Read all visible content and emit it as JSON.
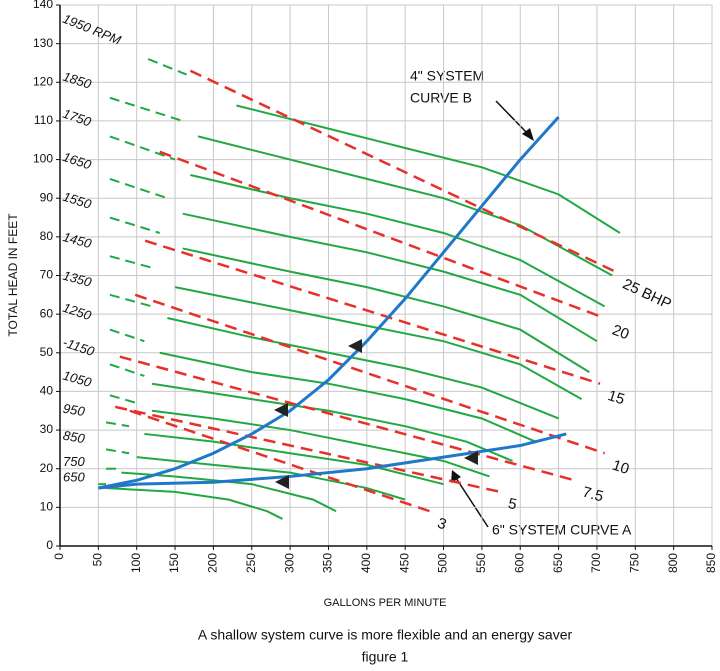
{
  "chart_data": {
    "type": "line",
    "xlabel": "GALLONS PER MINUTE",
    "ylabel": "TOTAL HEAD IN FEET",
    "caption": [
      "A shallow system curve is more flexible and an energy saver",
      "figure 1"
    ],
    "xlim": [
      0,
      850
    ],
    "xticks": [
      0,
      50,
      100,
      150,
      200,
      250,
      300,
      350,
      400,
      450,
      500,
      550,
      600,
      650,
      700,
      750,
      800,
      850
    ],
    "ylim": [
      0,
      140
    ],
    "yticks": [
      0,
      10,
      20,
      30,
      40,
      50,
      60,
      70,
      80,
      90,
      100,
      110,
      120,
      130,
      140
    ],
    "grid": true,
    "rpm_curves": [
      {
        "name": "1950 RPM",
        "color": "#22a843",
        "dash_x": [
          115,
          165
        ],
        "dash_values": [
          126,
          122
        ],
        "x": [
          230,
          350,
          450,
          550,
          650,
          730
        ],
        "values": [
          114,
          108,
          103,
          98,
          91,
          81
        ]
      },
      {
        "name": "1850",
        "color": "#22a843",
        "dash_x": [
          65,
          160
        ],
        "dash_values": [
          116,
          110
        ],
        "x": [
          180,
          300,
          400,
          500,
          600,
          720
        ],
        "values": [
          106,
          100,
          95,
          90,
          83,
          70
        ]
      },
      {
        "name": "1750",
        "color": "#22a843",
        "dash_x": [
          65,
          150
        ],
        "dash_values": [
          106,
          100
        ],
        "x": [
          170,
          300,
          400,
          500,
          600,
          710
        ],
        "values": [
          96,
          90,
          86,
          81,
          74,
          62
        ]
      },
      {
        "name": "1650",
        "color": "#22a843",
        "dash_x": [
          65,
          140
        ],
        "dash_values": [
          95,
          90
        ],
        "x": [
          160,
          300,
          400,
          500,
          600,
          700
        ],
        "values": [
          86,
          80,
          76,
          71,
          65,
          53
        ]
      },
      {
        "name": "1550",
        "color": "#22a843",
        "dash_x": [
          65,
          130
        ],
        "dash_values": [
          85,
          81
        ],
        "x": [
          160,
          300,
          400,
          500,
          600,
          690
        ],
        "values": [
          77,
          71,
          67,
          62,
          56,
          45
        ]
      },
      {
        "name": "1450",
        "color": "#22a843",
        "dash_x": [
          65,
          120
        ],
        "dash_values": [
          75,
          72
        ],
        "x": [
          150,
          300,
          400,
          500,
          600,
          680
        ],
        "values": [
          67,
          61,
          57,
          53,
          47,
          38
        ]
      },
      {
        "name": "1350",
        "color": "#22a843",
        "dash_x": [
          65,
          120
        ],
        "dash_values": [
          65,
          62
        ],
        "x": [
          140,
          250,
          350,
          450,
          550,
          650
        ],
        "values": [
          59,
          54,
          50,
          46,
          41,
          33
        ]
      },
      {
        "name": "1250",
        "color": "#22a843",
        "dash_x": [
          65,
          110
        ],
        "dash_values": [
          56,
          53
        ],
        "x": [
          130,
          250,
          350,
          450,
          550,
          620
        ],
        "values": [
          50,
          45,
          42,
          38,
          33,
          27
        ]
      },
      {
        "name": "-1150",
        "color": "#22a843",
        "dash_x": [
          65,
          110
        ],
        "dash_values": [
          47,
          44
        ],
        "x": [
          120,
          250,
          350,
          450,
          530,
          590
        ],
        "values": [
          42,
          38,
          35,
          31,
          27,
          22
        ]
      },
      {
        "name": "1050",
        "color": "#22a843",
        "dash_x": [
          65,
          100
        ],
        "dash_values": [
          39,
          37
        ],
        "x": [
          120,
          200,
          300,
          400,
          500,
          560
        ],
        "values": [
          35,
          33,
          30,
          26,
          22,
          18
        ]
      },
      {
        "name": "950",
        "color": "#22a843",
        "dash_x": [
          60,
          90
        ],
        "dash_values": [
          32,
          31
        ],
        "x": [
          110,
          200,
          300,
          400,
          500
        ],
        "values": [
          29,
          27,
          24,
          21,
          16
        ]
      },
      {
        "name": "850",
        "color": "#22a843",
        "dash_x": [
          60,
          90
        ],
        "dash_values": [
          25,
          24
        ],
        "x": [
          100,
          200,
          300,
          400,
          450
        ],
        "values": [
          23,
          21,
          19,
          15,
          12
        ]
      },
      {
        "name": "750",
        "color": "#22a843",
        "dash_x": [
          60,
          80
        ],
        "dash_values": [
          20,
          20
        ],
        "x": [
          80,
          150,
          250,
          330,
          360
        ],
        "values": [
          19,
          18,
          16,
          12,
          9
        ]
      },
      {
        "name": "650",
        "color": "#22a843",
        "dash_x": [
          50,
          60
        ],
        "dash_values": [
          16,
          16
        ],
        "x": [
          60,
          150,
          220,
          270,
          290
        ],
        "values": [
          15,
          14,
          12,
          9,
          7
        ]
      }
    ],
    "bhp_lines": [
      {
        "name": "25 BHP",
        "color": "#e8302a",
        "x": [
          170,
          724
        ],
        "values": [
          123,
          71
        ]
      },
      {
        "name": "20",
        "color": "#e8302a",
        "x": [
          130,
          710
        ],
        "values": [
          102,
          59
        ]
      },
      {
        "name": "15",
        "color": "#e8302a",
        "x": [
          111,
          704
        ],
        "values": [
          79,
          42
        ]
      },
      {
        "name": "10",
        "color": "#e8302a",
        "x": [
          98,
          710
        ],
        "values": [
          65,
          24
        ]
      },
      {
        "name": "7.5",
        "color": "#e8302a",
        "x": [
          78,
          671
        ],
        "values": [
          49,
          17
        ]
      },
      {
        "name": "5",
        "color": "#e8302a",
        "x": [
          72,
          574
        ],
        "values": [
          36,
          14
        ]
      },
      {
        "name": "3",
        "color": "#e8302a",
        "x": [
          91,
          482
        ],
        "values": [
          35,
          9
        ]
      }
    ],
    "system_curves": [
      {
        "label": [
          "4\" SYSTEM",
          "CURVE B"
        ],
        "color": "#1f78c8",
        "x": [
          50,
          100,
          150,
          200,
          250,
          300,
          350,
          400,
          450,
          500,
          550,
          600,
          650
        ],
        "values": [
          15,
          17,
          20,
          24,
          29,
          35,
          43,
          53,
          64,
          76,
          88,
          100,
          111
        ]
      },
      {
        "label": [
          "6\" SYSTEM CURVE A"
        ],
        "color": "#1f78c8",
        "x": [
          50,
          100,
          200,
          300,
          400,
          500,
          600,
          660
        ],
        "values": [
          15,
          16,
          16.5,
          18,
          20,
          23,
          26,
          29
        ]
      }
    ]
  }
}
